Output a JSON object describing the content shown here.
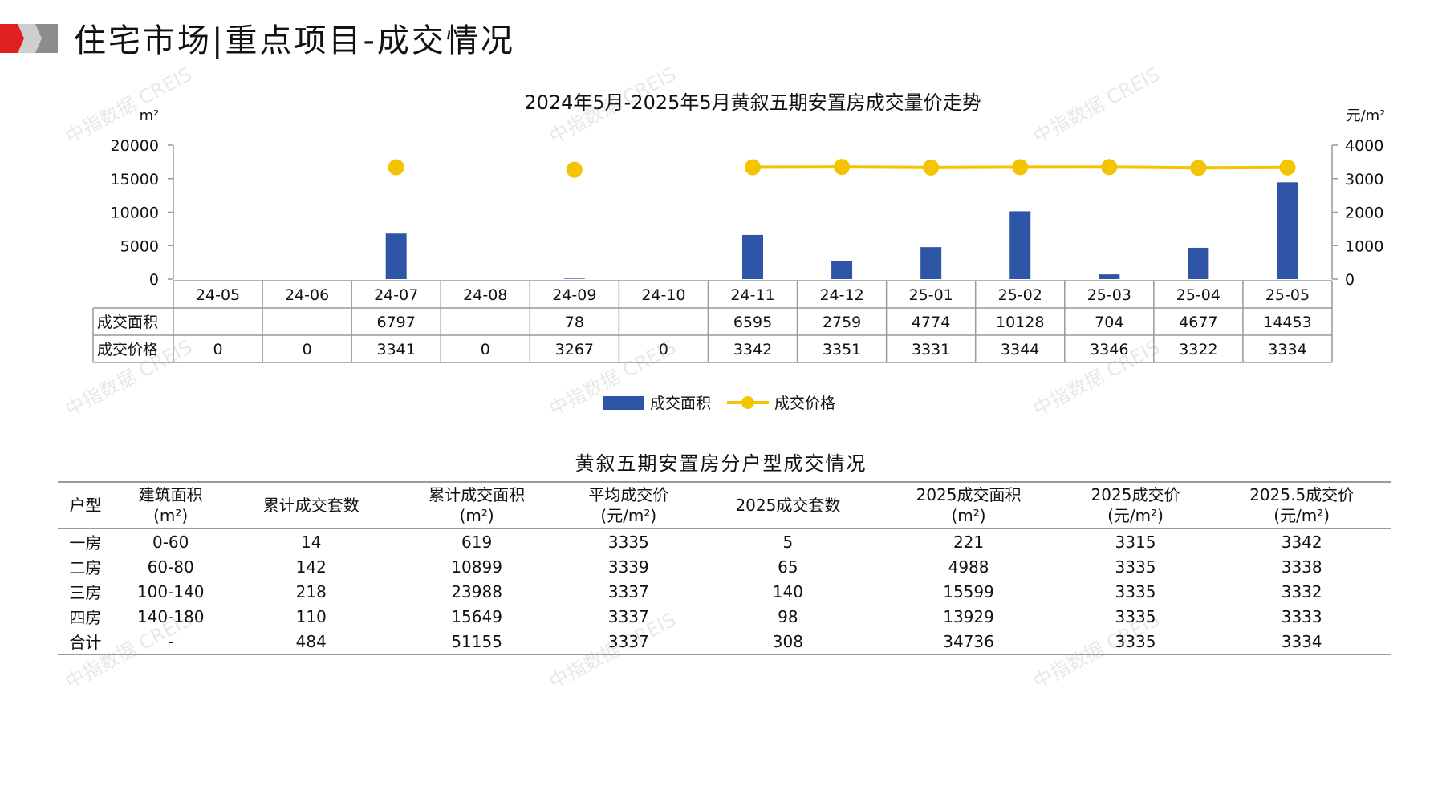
{
  "page": {
    "title": "住宅市场|重点项目-成交情况"
  },
  "watermark": "中指数据 CREIS",
  "colors": {
    "bar": "#2f56a6",
    "line": "#f5c400",
    "accent_red": "#e02020",
    "accent_gray": "#8c8c8c"
  },
  "chart_data": {
    "type": "bar",
    "title": "2024年5月-2025年5月黄叙五期安置房成交量价走势",
    "y_left_unit": "m²",
    "y_right_unit": "元/m²",
    "y_left_ticks": [
      "20000",
      "15000",
      "10000",
      "5000",
      "0"
    ],
    "y_right_ticks": [
      "4000",
      "3000",
      "2000",
      "1000",
      "0"
    ],
    "ylim_left": [
      0,
      20000
    ],
    "ylim_right": [
      0,
      4000
    ],
    "categories": [
      "24-05",
      "24-06",
      "24-07",
      "24-08",
      "24-09",
      "24-10",
      "24-11",
      "24-12",
      "25-01",
      "25-02",
      "25-03",
      "25-04",
      "25-05"
    ],
    "series": [
      {
        "name": "成交面积",
        "type": "bar",
        "axis": "left",
        "values": [
          null,
          null,
          6797,
          null,
          78,
          null,
          6595,
          2759,
          4774,
          10128,
          704,
          4677,
          14453
        ]
      },
      {
        "name": "成交价格",
        "type": "line",
        "axis": "right",
        "values": [
          0,
          0,
          3341,
          0,
          3267,
          0,
          3342,
          3351,
          3331,
          3344,
          3346,
          3322,
          3334
        ]
      }
    ],
    "table_rows": [
      {
        "label": "成交面积",
        "cells": [
          "",
          "",
          "6797",
          "",
          "78",
          "",
          "6595",
          "2759",
          "4774",
          "10128",
          "704",
          "4677",
          "14453"
        ]
      },
      {
        "label": "成交价格",
        "cells": [
          "0",
          "0",
          "3341",
          "0",
          "3267",
          "0",
          "3342",
          "3351",
          "3331",
          "3344",
          "3346",
          "3322",
          "3334"
        ]
      }
    ],
    "legend": [
      "成交面积",
      "成交价格"
    ],
    "legend_position": "bottom-center",
    "grid": false
  },
  "type_table": {
    "title": "黄叙五期安置房分户型成交情况",
    "headers": [
      [
        "户型"
      ],
      [
        "建筑面积",
        "(m²)"
      ],
      [
        "累计成交套数"
      ],
      [
        "累计成交面积",
        "(m²)"
      ],
      [
        "平均成交价",
        "(元/m²)"
      ],
      [
        "2025成交套数"
      ],
      [
        "2025成交面积",
        "(m²)"
      ],
      [
        "2025成交价",
        "(元/m²)"
      ],
      [
        "2025.5成交价",
        "(元/m²)"
      ]
    ],
    "rows": [
      [
        "一房",
        "0-60",
        "14",
        "619",
        "3335",
        "5",
        "221",
        "3315",
        "3342"
      ],
      [
        "二房",
        "60-80",
        "142",
        "10899",
        "3339",
        "65",
        "4988",
        "3335",
        "3338"
      ],
      [
        "三房",
        "100-140",
        "218",
        "23988",
        "3337",
        "140",
        "15599",
        "3335",
        "3332"
      ],
      [
        "四房",
        "140-180",
        "110",
        "15649",
        "3337",
        "98",
        "13929",
        "3335",
        "3333"
      ],
      [
        "合计",
        "-",
        "484",
        "51155",
        "3337",
        "308",
        "34736",
        "3335",
        "3334"
      ]
    ]
  }
}
